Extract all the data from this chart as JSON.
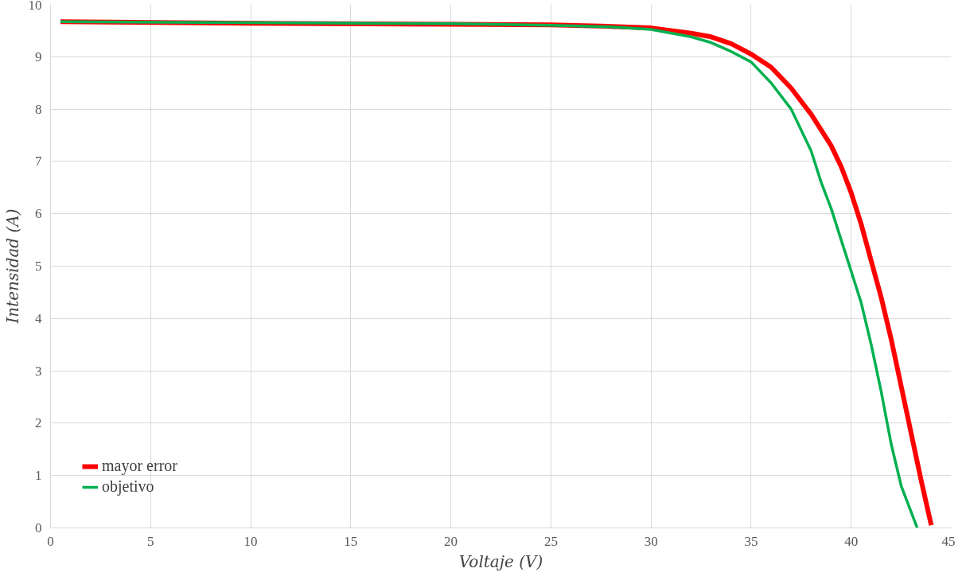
{
  "chart_data": {
    "type": "line",
    "xlabel": "Voltaje (V)",
    "ylabel": "Intensidad (A)",
    "xlim": [
      0,
      45
    ],
    "xticks": [
      0,
      5,
      10,
      15,
      20,
      25,
      30,
      35,
      40,
      45
    ],
    "ylim": [
      0,
      10
    ],
    "yticks": [
      0,
      1,
      2,
      3,
      4,
      5,
      6,
      7,
      8,
      9,
      10
    ],
    "grid": true,
    "legend": "bottom left",
    "marker": "none",
    "line_style": "solid",
    "series": [
      {
        "name": "mayor error",
        "color": "#ff0000",
        "x": [
          0.5,
          10,
          20,
          25,
          28,
          30,
          32,
          33,
          34,
          35,
          36,
          37,
          38,
          39,
          39.5,
          40,
          40.5,
          41,
          41.5,
          42,
          42.5,
          43,
          43.5,
          44
        ],
        "values": [
          9.67,
          9.64,
          9.62,
          9.61,
          9.58,
          9.55,
          9.45,
          9.38,
          9.25,
          9.05,
          8.8,
          8.4,
          7.9,
          7.3,
          6.9,
          6.4,
          5.8,
          5.1,
          4.4,
          3.6,
          2.7,
          1.8,
          0.9,
          0.05
        ]
      },
      {
        "name": "objetivo",
        "color": "#00b050",
        "x": [
          0.5,
          10,
          20,
          25,
          28,
          30,
          32,
          33,
          34,
          35,
          36,
          37,
          38,
          38.5,
          39,
          39.5,
          40,
          40.5,
          41,
          41.5,
          42,
          42.5,
          43.3
        ],
        "values": [
          9.67,
          9.65,
          9.63,
          9.6,
          9.57,
          9.52,
          9.38,
          9.27,
          9.1,
          8.9,
          8.5,
          8.0,
          7.2,
          6.6,
          6.1,
          5.5,
          4.9,
          4.3,
          3.5,
          2.6,
          1.6,
          0.8,
          0
        ]
      }
    ]
  }
}
